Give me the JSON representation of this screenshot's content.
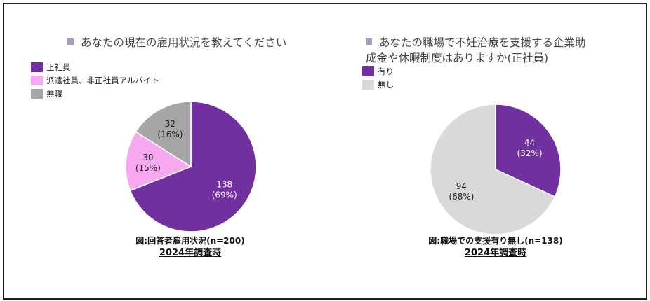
{
  "colors": {
    "purple": "#7030a0",
    "pink": "#f8a8f0",
    "gray": "#a6a6a6",
    "lightgray": "#d9d9db",
    "white": "#ffffff",
    "dark": "#222222"
  },
  "chart_data": [
    {
      "type": "pie",
      "title": "あなたの現在の雇用状況を教えてください",
      "legend": [
        {
          "label": "正社員",
          "color": "#7030a0"
        },
        {
          "label": "派遣社員、非正社員アルバイト",
          "color": "#f8a8f0"
        },
        {
          "label": "無職",
          "color": "#a6a6a6"
        }
      ],
      "slices": [
        {
          "label": "正社員",
          "value": 138,
          "percent_label": "(69%)",
          "color": "#7030a0",
          "text_color": "#ffffff"
        },
        {
          "label": "派遣社員、非正社員アルバイト",
          "value": 30,
          "percent_label": "(15%)",
          "color": "#f8a8f0",
          "text_color": "#222222"
        },
        {
          "label": "無職",
          "value": 32,
          "percent_label": "(16%)",
          "color": "#a6a6a6",
          "text_color": "#222222"
        }
      ],
      "caption": "図:回答者雇用状況(n=200)",
      "subcaption": "2024年調査時"
    },
    {
      "type": "pie",
      "title": "あなたの職場で不妊治療を支援する企業助\n成金や休暇制度はありますか(正社員)",
      "legend": [
        {
          "label": "有り",
          "color": "#7030a0"
        },
        {
          "label": "無し",
          "color": "#d9d9db"
        }
      ],
      "slices": [
        {
          "label": "有り",
          "value": 44,
          "percent_label": "(32%)",
          "color": "#7030a0",
          "text_color": "#ffffff"
        },
        {
          "label": "無し",
          "value": 94,
          "percent_label": "(68%)",
          "color": "#d9d9db",
          "text_color": "#222222"
        }
      ],
      "caption": "図:職場での支援有り無し(n=138)",
      "subcaption": "2024年調査時"
    }
  ]
}
